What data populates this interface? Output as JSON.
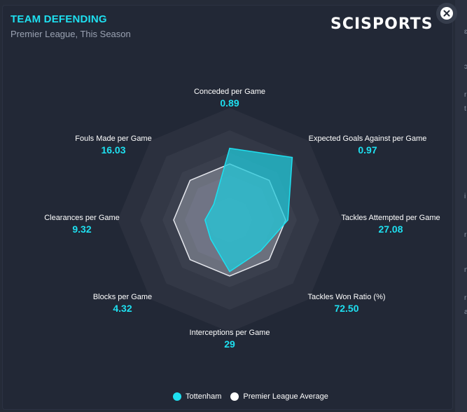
{
  "header": {
    "title": "TEAM DEFENDING",
    "subtitle": "Premier League, This Season",
    "logo": "SCISPORTS",
    "close_icon": "close-icon"
  },
  "colors": {
    "accent": "#1ee0f0",
    "team_fill": "#22c8da",
    "average_fill": "#c8ccd6",
    "rings": [
      "#2b303e",
      "#333846",
      "#3a3f4d",
      "#41465a",
      "#4a4f60"
    ]
  },
  "chart_data": {
    "type": "radar",
    "axes": [
      {
        "label": "Conceded per Game",
        "value": "0.89"
      },
      {
        "label": "Expected Goals Against per Game",
        "value": "0.97"
      },
      {
        "label": "Tackles Attempted per Game",
        "value": "27.08"
      },
      {
        "label": "Tackles Won Ratio (%)",
        "value": "72.50"
      },
      {
        "label": "Interceptions per Game",
        "value": "29"
      },
      {
        "label": "Blocks per Game",
        "value": "4.32"
      },
      {
        "label": "Clearances per Game",
        "value": "9.32"
      },
      {
        "label": "Fouls Made per Game",
        "value": "16.03"
      }
    ],
    "series": [
      {
        "name": "Tottenham",
        "values": [
          0.64,
          0.79,
          0.52,
          0.39,
          0.46,
          0.24,
          0.22,
          0.2
        ]
      },
      {
        "name": "Premier League Average",
        "values": [
          0.5,
          0.5,
          0.5,
          0.5,
          0.5,
          0.5,
          0.5,
          0.5
        ]
      }
    ],
    "grid": true,
    "legend_position": "bottom"
  },
  "legend": {
    "team": "Tottenham",
    "average": "Premier League Average"
  }
}
